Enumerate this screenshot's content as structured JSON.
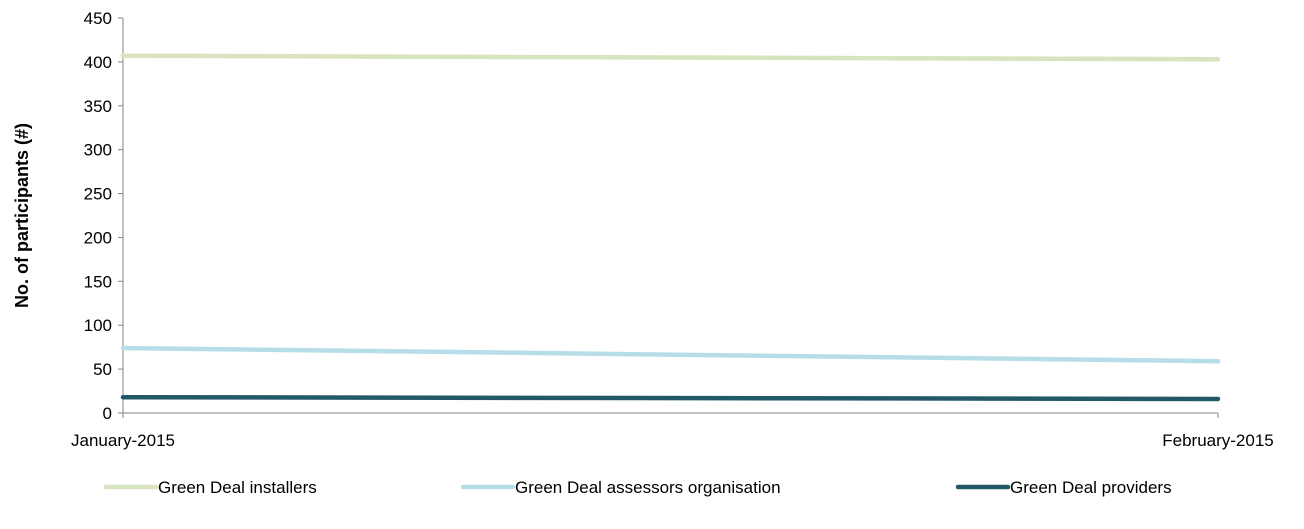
{
  "chart_data": {
    "type": "line",
    "title": "",
    "xlabel": "",
    "ylabel": "No. of participants (#)",
    "categories": [
      "January-2015",
      "February-2015"
    ],
    "ylim": [
      0,
      450
    ],
    "yticks": [
      0,
      50,
      100,
      150,
      200,
      250,
      300,
      350,
      400,
      450
    ],
    "grid": false,
    "legend_position": "bottom",
    "series": [
      {
        "name": "Green Deal installers",
        "values": [
          407,
          403
        ],
        "color": "#d7e4bd"
      },
      {
        "name": "Green Deal assessors organisation",
        "values": [
          74,
          59
        ],
        "color": "#b7dde8"
      },
      {
        "name": "Green Deal providers",
        "values": [
          18,
          16
        ],
        "color": "#215968"
      }
    ]
  }
}
